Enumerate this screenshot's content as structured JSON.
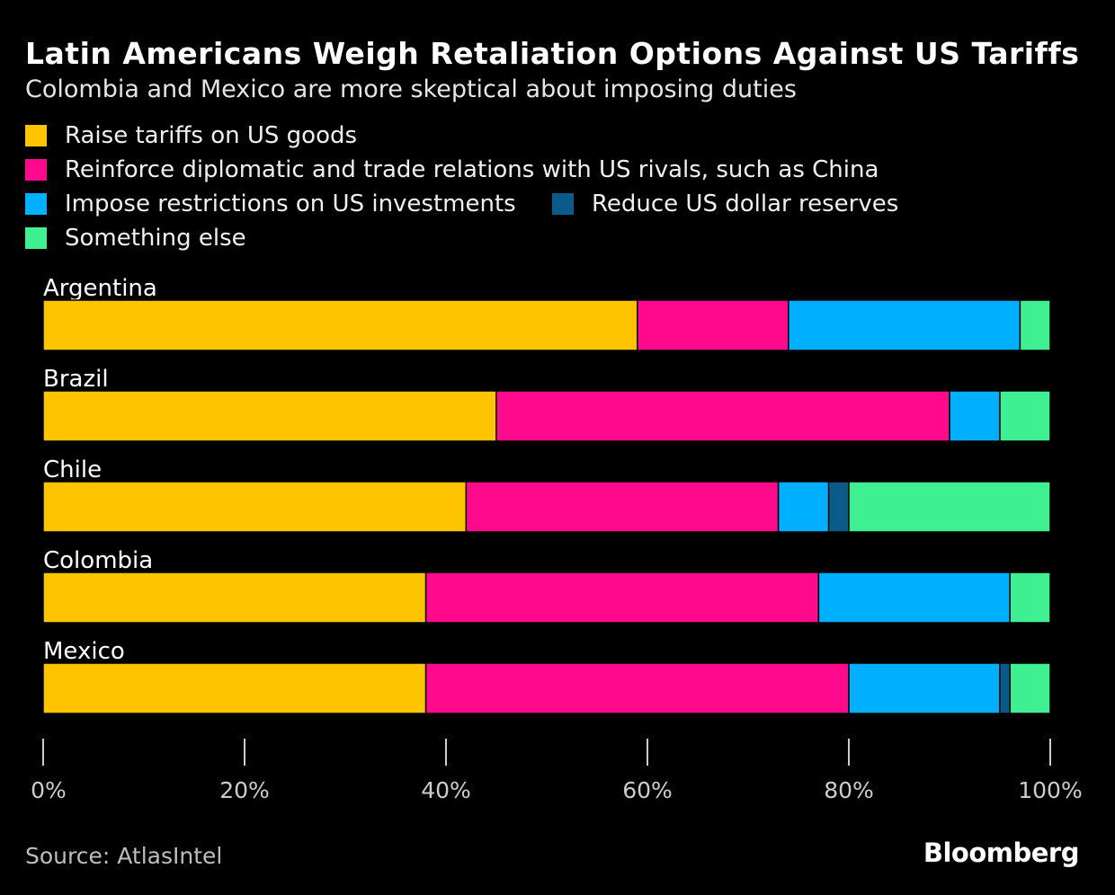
{
  "title": "Latin Americans Weigh Retaliation Options Against US Tariffs",
  "subtitle": "Colombia and Mexico are more skeptical about imposing duties",
  "source": "Source: AtlasIntel",
  "logo": "Bloomberg",
  "chart_data": {
    "type": "bar",
    "orientation": "horizontal",
    "stacked": true,
    "categories": [
      "Argentina",
      "Brazil",
      "Chile",
      "Colombia",
      "Mexico"
    ],
    "series": [
      {
        "name": "Raise tariffs on US goods",
        "color": "#FFC400",
        "values": [
          59,
          45,
          42,
          38,
          38
        ]
      },
      {
        "name": "Reinforce diplomatic and trade relations with US rivals, such as China",
        "color": "#FF0A8C",
        "values": [
          15,
          45,
          31,
          39,
          42
        ]
      },
      {
        "name": "Impose restrictions on US investments",
        "color": "#00B0FF",
        "values": [
          23,
          5,
          5,
          19,
          15
        ]
      },
      {
        "name": "Reduce US dollar reserves",
        "color": "#0A5A8A",
        "values": [
          0,
          0,
          2,
          0,
          1
        ]
      },
      {
        "name": "Something else",
        "color": "#3EF092",
        "values": [
          3,
          5,
          20,
          4,
          4
        ]
      }
    ],
    "xlim": [
      0,
      100
    ],
    "xticks": [
      "0%",
      "20%",
      "40%",
      "60%",
      "80%",
      "100%"
    ],
    "xtick_values": [
      0,
      20,
      40,
      60,
      80,
      100
    ],
    "grid": false,
    "legend_position": "top"
  }
}
